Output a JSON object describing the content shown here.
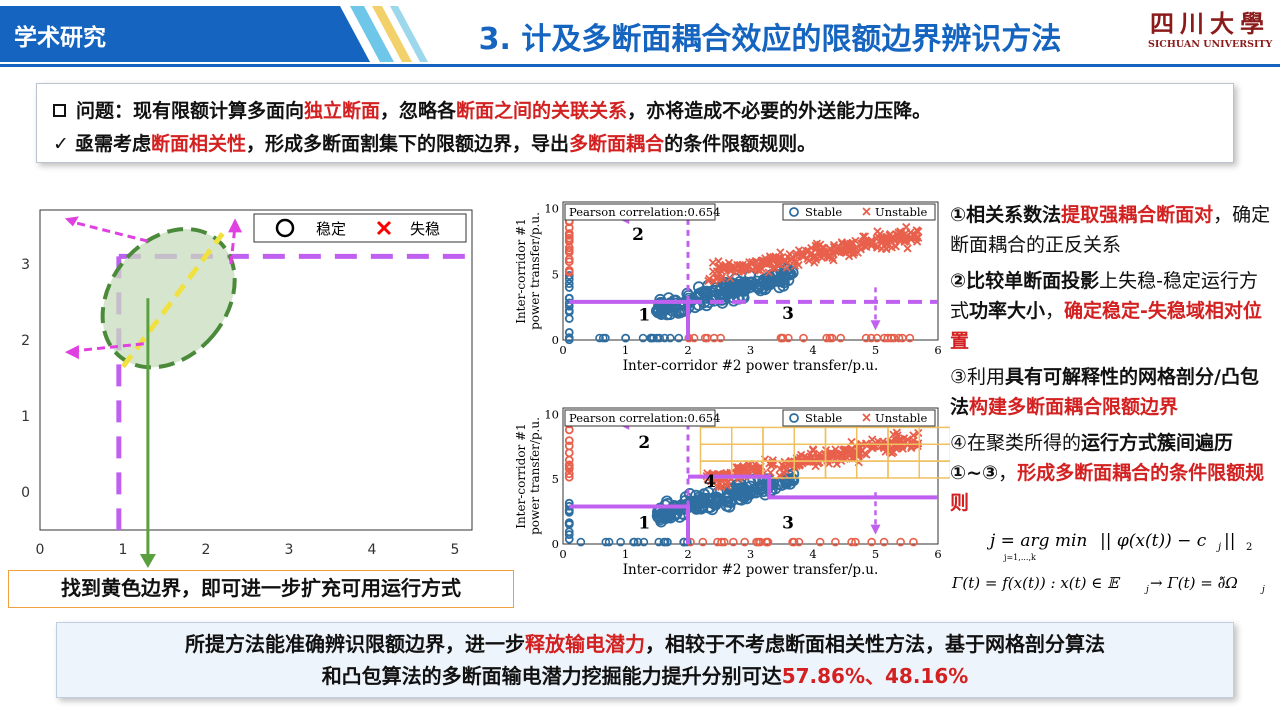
{
  "header": {
    "section_label": "学术研究",
    "title": "3. 计及多断面耦合效应的限额边界辨识方法",
    "logo_cn": "四川大學",
    "logo_en": "SICHUAN UNIVERSITY"
  },
  "problem": {
    "line1": [
      "问题：现有限额计算多面向",
      "独立断面",
      "，忽略各",
      "断面之间的关联关系",
      "，亦将造成不必要的外送能力压降。"
    ],
    "line2_check": "✓",
    "line2": [
      "亟需考虑",
      "断面相关性",
      "，形成多断面割集下的限额边界，导出",
      "多断面耦合",
      "的条件限额规则。"
    ]
  },
  "left_chart": {
    "legend_stable": "稳定",
    "legend_unstable": "失稳",
    "xticks": [
      "0",
      "1",
      "2",
      "3",
      "4",
      "5"
    ],
    "yticks": [
      "3",
      "2",
      "1",
      "0"
    ],
    "colors": {
      "stable": "#000000",
      "unstable": "#ff0000",
      "ellipse": "#4a8a3a",
      "dash": "#c060f0"
    }
  },
  "callout": "找到黄色边界，即可进一步扩充可用运行方式",
  "mid_chart": {
    "pearson": "Pearson correlation:0.654",
    "legend_stable": "Stable",
    "legend_unstable": "Unstable",
    "xlabel": "Inter-corridor #2 power transfer/p.u.",
    "ylabel1": "Inter-corridor #1",
    "ylabel2": "power transfer/p.u.",
    "xticks": [
      "0",
      "1",
      "2",
      "3",
      "4",
      "5",
      "6"
    ],
    "yticks": [
      "10",
      "5",
      "0"
    ],
    "region_labels_top": [
      "2",
      "1",
      "3"
    ],
    "region_labels_bottom": [
      "2",
      "4",
      "1",
      "3"
    ],
    "colors": {
      "stable": "#2f6ea0",
      "unstable": "#e8604c",
      "grid": "#f0c060",
      "dash": "#c060f0"
    }
  },
  "steps": [
    {
      "parts": [
        [
          "b",
          "①相关系数法"
        ],
        [
          "red",
          "提取强耦合断面对"
        ],
        [
          "n",
          "，确定断面耦合的正反关系"
        ]
      ]
    },
    {
      "parts": [
        [
          "b",
          "②比较单断面投影"
        ],
        [
          "n",
          "上失稳-稳定运行方式"
        ],
        [
          "b",
          "功率大小"
        ],
        [
          "n",
          "，"
        ],
        [
          "red",
          "确定稳定-失稳域相对位置"
        ]
      ]
    },
    {
      "parts": [
        [
          "n",
          "③利用"
        ],
        [
          "b",
          "具有可解释性的网格剖分/凸包法"
        ],
        [
          "red",
          "构建多断面耦合限额边界"
        ]
      ]
    },
    {
      "parts": [
        [
          "n",
          "④在聚类所得的"
        ],
        [
          "b",
          "运行方式簇间遍历①~③"
        ],
        [
          "n",
          "，"
        ],
        [
          "red",
          "形成多断面耦合的条件限额规则"
        ]
      ]
    }
  ],
  "formula": {
    "eq1_left": "j = arg min",
    "eq1_sub": "j=1,...,k",
    "eq1_right": "|| φ(x(t)) − c",
    "eq1_tail": " ||",
    "eq2": "Γ(t) = f(x(t)) :  x(t) ∈ 𝔼",
    "eq2_tail": " → Γ(t) = ∂̃Ω"
  },
  "conclusion": {
    "line1": [
      "所提方法能准确辨识限额边界，进一步",
      "释放输电潜力",
      "，相较于不考虑断面相关性方法，基于网格剖分算法"
    ],
    "line2": [
      "和凸包算法的多断面输电潜力挖掘能力提升分别可达",
      "57.86%、48.16%"
    ]
  }
}
